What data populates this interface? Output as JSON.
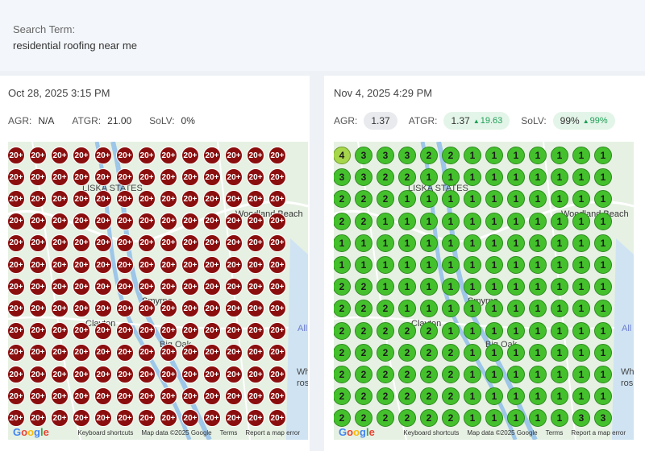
{
  "search": {
    "label": "Search Term:",
    "value": "residential roofing near me"
  },
  "panels": [
    {
      "date": "Oct 28, 2025 3:15 PM",
      "metrics": {
        "agr_label": "AGR:",
        "agr_value": "N/A",
        "atgr_label": "ATGR:",
        "atgr_value": "21.00",
        "solv_label": "SoLV:",
        "solv_value": "0%"
      },
      "map_labels": [
        "LISKA STATES",
        "Woodland Beach",
        "Smyrna",
        "Clayton",
        "Big Oak",
        "All",
        "Wh",
        "ros"
      ],
      "grid": [
        [
          "20+",
          "20+",
          "20+",
          "20+",
          "20+",
          "20+",
          "20+",
          "20+",
          "20+",
          "20+",
          "20+",
          "20+",
          "20+"
        ],
        [
          "20+",
          "20+",
          "20+",
          "20+",
          "20+",
          "20+",
          "20+",
          "20+",
          "20+",
          "20+",
          "20+",
          "20+",
          "20+"
        ],
        [
          "20+",
          "20+",
          "20+",
          "20+",
          "20+",
          "20+",
          "20+",
          "20+",
          "20+",
          "20+",
          "20+",
          "20+",
          "20+"
        ],
        [
          "20+",
          "20+",
          "20+",
          "20+",
          "20+",
          "20+",
          "20+",
          "20+",
          "20+",
          "20+",
          "20+",
          "20+",
          "20+"
        ],
        [
          "20+",
          "20+",
          "20+",
          "20+",
          "20+",
          "20+",
          "20+",
          "20+",
          "20+",
          "20+",
          "20+",
          "20+",
          "20+"
        ],
        [
          "20+",
          "20+",
          "20+",
          "20+",
          "20+",
          "20+",
          "20+",
          "20+",
          "20+",
          "20+",
          "20+",
          "20+",
          "20+"
        ],
        [
          "20+",
          "20+",
          "20+",
          "20+",
          "20+",
          "20+",
          "20+",
          "20+",
          "20+",
          "20+",
          "20+",
          "20+",
          "20+"
        ],
        [
          "20+",
          "20+",
          "20+",
          "20+",
          "20+",
          "20+",
          "20+",
          "20+",
          "20+",
          "20+",
          "20+",
          "20+",
          "20+"
        ],
        [
          "20+",
          "20+",
          "20+",
          "20+",
          "20+",
          "20+",
          "20+",
          "20+",
          "20+",
          "20+",
          "20+",
          "20+",
          "20+"
        ],
        [
          "20+",
          "20+",
          "20+",
          "20+",
          "20+",
          "20+",
          "20+",
          "20+",
          "20+",
          "20+",
          "20+",
          "20+",
          "20+"
        ],
        [
          "20+",
          "20+",
          "20+",
          "20+",
          "20+",
          "20+",
          "20+",
          "20+",
          "20+",
          "20+",
          "20+",
          "20+",
          "20+"
        ],
        [
          "20+",
          "20+",
          "20+",
          "20+",
          "20+",
          "20+",
          "20+",
          "20+",
          "20+",
          "20+",
          "20+",
          "20+",
          "20+"
        ],
        [
          "20+",
          "20+",
          "20+",
          "20+",
          "20+",
          "20+",
          "20+",
          "20+",
          "20+",
          "20+",
          "20+",
          "20+",
          "20+"
        ]
      ]
    },
    {
      "date": "Nov 4, 2025 4:29 PM",
      "metrics": {
        "agr_label": "AGR:",
        "agr_value": "1.37",
        "atgr_label": "ATGR:",
        "atgr_value": "1.37",
        "atgr_delta": "19.63",
        "solv_label": "SoLV:",
        "solv_value": "99%",
        "solv_delta": "99%"
      },
      "map_labels": [
        "LISKA STATES",
        "Woodland Beach",
        "Smyrna",
        "Clayton",
        "Big Oak",
        "All",
        "Wh",
        "ros"
      ],
      "grid": [
        [
          "4",
          "3",
          "3",
          "3",
          "2",
          "2",
          "1",
          "1",
          "1",
          "1",
          "1",
          "1",
          "1"
        ],
        [
          "3",
          "3",
          "2",
          "2",
          "1",
          "1",
          "1",
          "1",
          "1",
          "1",
          "1",
          "1",
          "1"
        ],
        [
          "2",
          "2",
          "2",
          "1",
          "1",
          "1",
          "1",
          "1",
          "1",
          "1",
          "1",
          "1",
          "1"
        ],
        [
          "2",
          "2",
          "1",
          "1",
          "1",
          "1",
          "1",
          "1",
          "1",
          "1",
          "1",
          "1",
          "1"
        ],
        [
          "1",
          "1",
          "1",
          "1",
          "1",
          "1",
          "1",
          "1",
          "1",
          "1",
          "1",
          "1",
          "1"
        ],
        [
          "1",
          "1",
          "1",
          "1",
          "1",
          "1",
          "1",
          "1",
          "1",
          "1",
          "1",
          "1",
          "1"
        ],
        [
          "2",
          "2",
          "1",
          "1",
          "1",
          "1",
          "1",
          "1",
          "1",
          "1",
          "1",
          "1",
          "1"
        ],
        [
          "2",
          "2",
          "2",
          "1",
          "1",
          "1",
          "1",
          "1",
          "1",
          "1",
          "1",
          "1",
          "1"
        ],
        [
          "2",
          "2",
          "2",
          "2",
          "2",
          "1",
          "1",
          "1",
          "1",
          "1",
          "1",
          "1",
          "1"
        ],
        [
          "2",
          "2",
          "2",
          "2",
          "2",
          "2",
          "1",
          "1",
          "1",
          "1",
          "1",
          "1",
          "1"
        ],
        [
          "2",
          "2",
          "2",
          "2",
          "2",
          "2",
          "1",
          "1",
          "1",
          "1",
          "1",
          "1",
          "1"
        ],
        [
          "2",
          "2",
          "2",
          "2",
          "2",
          "2",
          "1",
          "1",
          "1",
          "1",
          "1",
          "1",
          "1"
        ],
        [
          "2",
          "2",
          "2",
          "2",
          "2",
          "2",
          "1",
          "1",
          "1",
          "1",
          "1",
          "3",
          "3"
        ]
      ]
    }
  ],
  "map_footer": {
    "keyboard": "Keyboard shortcuts",
    "mapdata": "Map data ©2025 Google",
    "terms": "Terms",
    "report": "Report a map error"
  },
  "google_logo": {
    "g1": "G",
    "g2": "o",
    "g3": "o",
    "g4": "g",
    "g5": "l",
    "g6": "e"
  },
  "colors": {
    "red_dot": "#8b0e0e",
    "green_dot": "#44c02c",
    "lime_dot": "#a6d64a",
    "delta_green": "#1e9e57"
  },
  "icons": {
    "delta": "triangle-up-icon"
  }
}
